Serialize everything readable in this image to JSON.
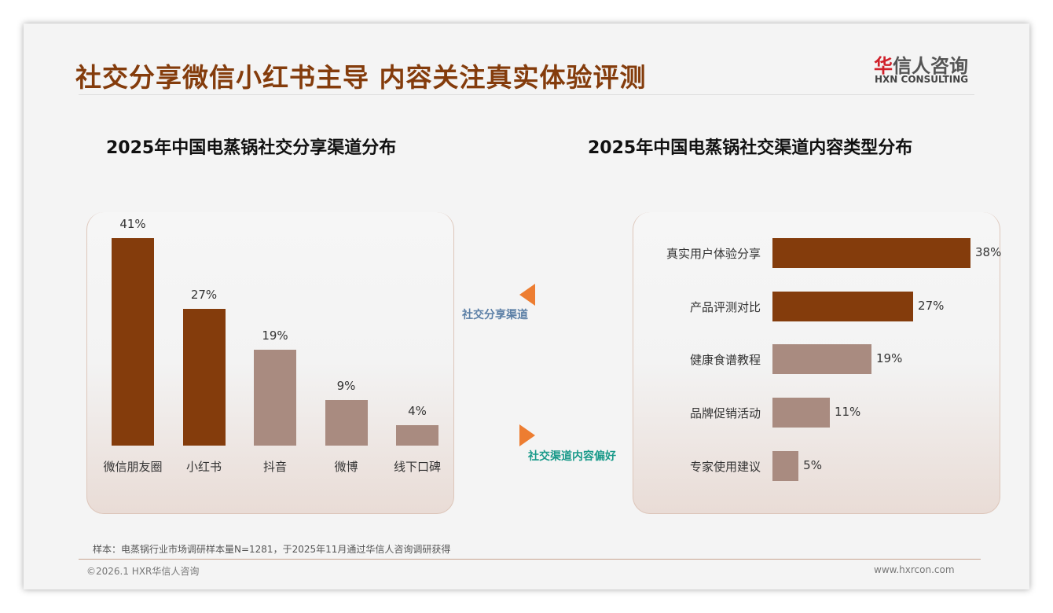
{
  "header": {
    "title": "社交分享微信小红书主导 内容关注真实体验评测",
    "logo_cn_accent": "华",
    "logo_cn": "信人咨询",
    "logo_en": "HXN CONSULTING"
  },
  "chart_data": [
    {
      "type": "bar",
      "title": "2025年中国电蒸锅社交分享渠道分布",
      "categories": [
        "微信朋友圈",
        "小红书",
        "抖音",
        "微博",
        "线下口碑"
      ],
      "values": [
        41,
        27,
        19,
        9,
        4
      ],
      "labels": [
        "41%",
        "27%",
        "19%",
        "9%",
        "4%"
      ],
      "colors": [
        "#843c0c",
        "#843c0c",
        "#a98b80",
        "#a98b80",
        "#a98b80"
      ],
      "ylim": [
        0,
        41
      ]
    },
    {
      "type": "bar",
      "orientation": "horizontal",
      "title": "2025年中国电蒸锅社交渠道内容类型分布",
      "categories": [
        "真实用户体验分享",
        "产品评测对比",
        "健康食谱教程",
        "品牌促销活动",
        "专家使用建议"
      ],
      "values": [
        38,
        27,
        19,
        11,
        5
      ],
      "labels": [
        "38%",
        "27%",
        "19%",
        "11%",
        "5%"
      ],
      "colors": [
        "#843c0c",
        "#843c0c",
        "#a98b80",
        "#a98b80",
        "#a98b80"
      ],
      "xlim": [
        0,
        38
      ]
    }
  ],
  "arrows": {
    "left_label": "社交分享渠道",
    "right_label": "社交渠道内容偏好",
    "accent": "#ed7d31"
  },
  "footer": {
    "note": "样本：电蒸锅行业市场调研样本量N=1281，于2025年11月通过华信人咨询调研获得",
    "copyright": "©2026.1 HXR华信人咨询",
    "site": "www.hxrcon.com"
  }
}
